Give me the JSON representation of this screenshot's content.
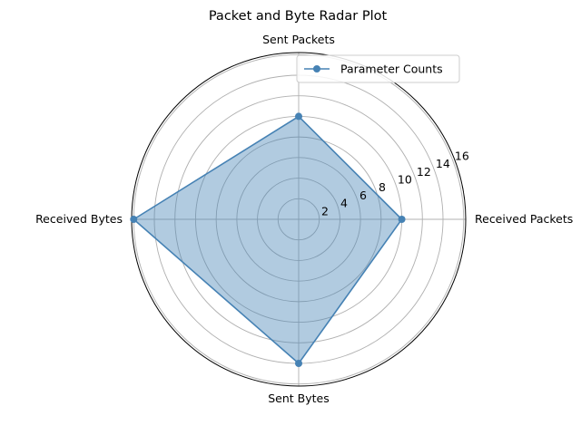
{
  "chart_data": {
    "type": "radar",
    "title": "Packet and Byte Radar Plot",
    "categories": [
      "Received Packets",
      "Sent Packets",
      "Received Bytes",
      "Sent Bytes"
    ],
    "series": [
      {
        "name": "Parameter Counts",
        "values": [
          10,
          10,
          16,
          14
        ],
        "color": "#4682b4",
        "fill_color": "#4682b4"
      }
    ],
    "r_ticks": [
      2,
      4,
      6,
      8,
      10,
      12,
      14,
      16
    ],
    "r_tick_labels": [
      "2",
      "4",
      "6",
      "8",
      "10",
      "12",
      "14",
      "16"
    ],
    "rlim": [
      0,
      16.2
    ],
    "grid": true,
    "legend": {
      "position": "top-right",
      "label": "Parameter Counts"
    }
  }
}
